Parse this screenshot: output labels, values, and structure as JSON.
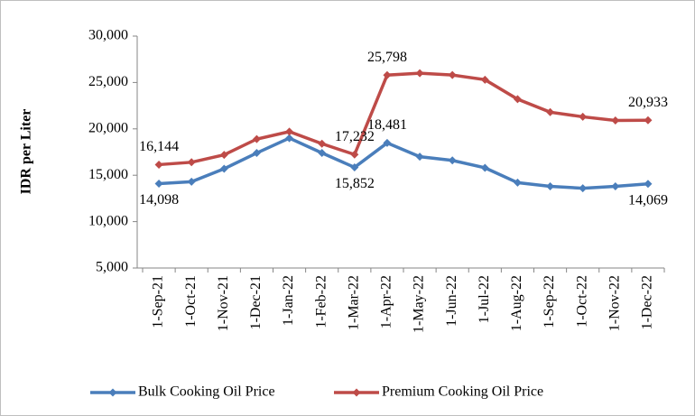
{
  "chart_data": {
    "type": "line",
    "y_label": "IDR per Liter",
    "categories": [
      "1-Sep-21",
      "1-Oct-21",
      "1-Nov-21",
      "1-Dec-21",
      "1-Jan-22",
      "1-Feb-22",
      "1-Mar-22",
      "1-Apr-22",
      "1-May-22",
      "1-Jun-22",
      "1-Jul-22",
      "1-Aug-22",
      "1-Sep-22",
      "1-Oct-22",
      "1-Nov-22",
      "1-Dec-22"
    ],
    "series": [
      {
        "name": "Bulk Cooking Oil Price",
        "color": "#4a7ebb",
        "values": [
          14098,
          14300,
          15700,
          17400,
          19000,
          17400,
          15852,
          18481,
          17000,
          16600,
          15800,
          14200,
          13800,
          13600,
          13800,
          14069
        ],
        "value_labels": [
          "14,098",
          null,
          null,
          null,
          null,
          null,
          "15,852",
          "18,481",
          null,
          null,
          null,
          null,
          null,
          null,
          null,
          "14,069"
        ]
      },
      {
        "name": "Premium Cooking Oil Price",
        "color": "#be4b48",
        "values": [
          16144,
          16400,
          17200,
          18900,
          19700,
          18400,
          17232,
          25798,
          26000,
          25800,
          25300,
          23200,
          21800,
          21300,
          20900,
          20933
        ],
        "value_labels": [
          "16,144",
          null,
          null,
          null,
          null,
          null,
          "17,232",
          "25,798",
          null,
          null,
          null,
          null,
          null,
          null,
          null,
          "20,933"
        ]
      }
    ],
    "ylim": [
      5000,
      30000
    ],
    "yticks": [
      {
        "value": 5000,
        "label": "5,000"
      },
      {
        "value": 10000,
        "label": "10,000"
      },
      {
        "value": 15000,
        "label": "15,000"
      },
      {
        "value": 20000,
        "label": "20,000"
      },
      {
        "value": 25000,
        "label": "25,000"
      },
      {
        "value": 30000,
        "label": "30,000"
      }
    ],
    "legend": "bottom",
    "grid": false
  }
}
